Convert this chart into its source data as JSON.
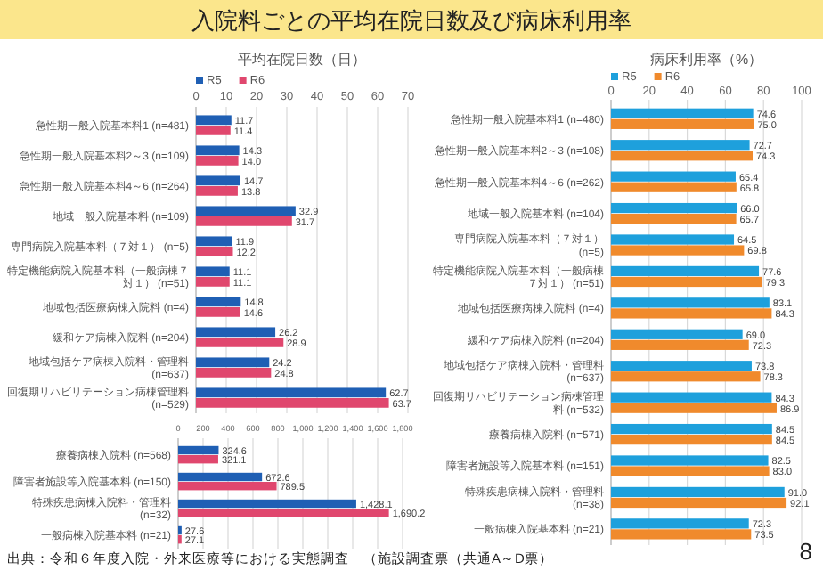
{
  "chart_data": [
    {
      "type": "bar",
      "orientation": "horizontal",
      "title": "入院料ごとの平均在院日数及び病床利用率",
      "xlabel": "平均在院日数（日）",
      "legend": "top left",
      "grid": "x",
      "categories": [
        "急性期一般入院基本料1 (n=481)",
        "急性期一般入院基本料2～3 (n=109)",
        "急性期一般入院基本料4～6 (n=264)",
        "地域一般入院基本料 (n=109)",
        "専門病院入院基本料（７対１） (n=5)",
        "特定機能病院入院基本料（一般病棟７対１） (n=51)",
        "地域包括医療病棟入院料 (n=4)",
        "緩和ケア病棟入院料 (n=204)",
        "地域包括ケア病棟入院料・管理料 (n=637)",
        "回復期リハビリテーション病棟管理料 (n=529)"
      ],
      "xlim": [
        0,
        70
      ],
      "xticks": [
        0,
        10,
        20,
        30,
        40,
        50,
        60,
        70
      ],
      "series": [
        {
          "name": "R5",
          "color": "#1f5fb4",
          "values": [
            11.7,
            14.3,
            14.7,
            32.9,
            11.9,
            11.1,
            14.8,
            26.2,
            24.2,
            62.7
          ],
          "value_labels": [
            "11.7",
            "14.3",
            "14.7",
            "32.9",
            "11.9",
            "11.1",
            "14.8",
            "26.2",
            "24.2",
            "62.7"
          ]
        },
        {
          "name": "R6",
          "color": "#e0476e",
          "values": [
            11.4,
            14.0,
            13.8,
            31.7,
            12.2,
            11.1,
            14.6,
            28.9,
            24.8,
            63.7
          ],
          "value_labels": [
            "11.4",
            "14.0",
            "13.8",
            "31.7",
            "12.2",
            "11.1",
            "14.6",
            "28.9",
            "24.8",
            "63.7"
          ]
        }
      ]
    },
    {
      "type": "bar",
      "orientation": "horizontal",
      "grid": "x",
      "categories": [
        "療養病棟入院料 (n=568)",
        "障害者施設等入院基本料 (n=150)",
        "特殊疾患病棟入院料・管理料 (n=32)",
        "一般病棟入院基本料 (n=21)"
      ],
      "xlim": [
        0,
        1800
      ],
      "xticks": [
        0,
        200,
        400,
        600,
        800,
        {
          "value": 1000,
          "label": "1,000"
        },
        {
          "value": 1200,
          "label": "1,200"
        },
        {
          "value": 1400,
          "label": "1,400"
        },
        {
          "value": 1600,
          "label": "1,600"
        },
        {
          "value": 1800,
          "label": "1,800"
        }
      ],
      "series": [
        {
          "color": "#1f5fb4",
          "values": [
            324.6,
            672.6,
            1428.1,
            27.6
          ],
          "value_labels": [
            "324.6",
            "672.6",
            "1,428.1",
            "27.6"
          ]
        },
        {
          "color": "#e0476e",
          "values": [
            321.1,
            789.5,
            1690.2,
            27.1
          ],
          "value_labels": [
            "321.1",
            "789.5",
            "1,690.2",
            "27.1"
          ]
        }
      ],
      "annotations": [
        "出典：令和６年度入院・外来医療等における実態調査　（施設調査票（共通A～D票）"
      ]
    },
    {
      "type": "bar",
      "orientation": "horizontal",
      "xlabel": "病床利用率（%）",
      "legend": "top left",
      "grid": "x",
      "categories": [
        "急性期一般入院基本料1 (n=480)",
        "急性期一般入院基本料2～3 (n=108)",
        "急性期一般入院基本料4～6 (n=262)",
        "地域一般入院基本料 (n=104)",
        "専門病院入院基本料（７対１） (n=5)",
        "特定機能病院入院基本料（一般病棟７対１） (n=51)",
        "地域包括医療病棟入院料 (n=4)",
        "緩和ケア病棟入院料 (n=204)",
        "地域包括ケア病棟入院料・管理料 (n=637)",
        "回復期リハビリテーション病棟管理料 (n=532)",
        "療養病棟入院料 (n=571)",
        "障害者施設等入院基本料 (n=151)",
        "特殊疾患病棟入院料・管理料 (n=38)",
        "一般病棟入院基本料 (n=21)"
      ],
      "xlim": [
        0,
        100
      ],
      "xticks": [
        0,
        20,
        40,
        60,
        80,
        100
      ],
      "series": [
        {
          "name": "R5",
          "color": "#1ea0dc",
          "values": [
            74.6,
            72.7,
            65.4,
            66.0,
            64.5,
            77.6,
            83.1,
            69.0,
            73.8,
            84.3,
            84.5,
            82.5,
            91.0,
            72.3
          ],
          "value_labels": [
            "74.6",
            "72.7",
            "65.4",
            "66.0",
            "64.5",
            "77.6",
            "83.1",
            "69.0",
            "73.8",
            "84.3",
            "84.5",
            "82.5",
            "91.0",
            "72.3"
          ]
        },
        {
          "name": "R6",
          "color": "#f08a2c",
          "values": [
            75.0,
            74.3,
            65.8,
            65.7,
            69.8,
            79.3,
            84.3,
            72.3,
            78.3,
            86.9,
            84.5,
            83.0,
            92.1,
            73.5
          ],
          "value_labels": [
            "75.0",
            "74.3",
            "65.8",
            "65.7",
            "69.8",
            "79.3",
            "84.3",
            "72.3",
            "78.3",
            "86.9",
            "84.5",
            "83.0",
            "92.1",
            "73.5"
          ]
        }
      ],
      "annotations": [
        "8"
      ]
    }
  ]
}
